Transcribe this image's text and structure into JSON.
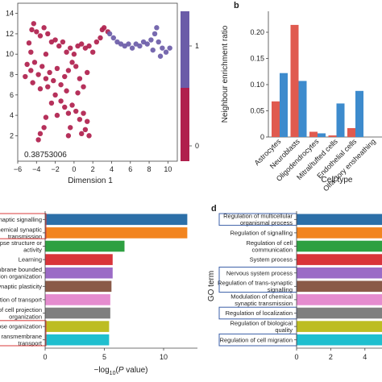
{
  "colors": {
    "red": "#e05a4f",
    "blue": "#3d8bcd",
    "crimson": "#b01f4d",
    "purple": "#6b5ca8",
    "box_red": "#d93b3b",
    "box_blue": "#3b5fa8"
  },
  "chart_data": [
    {
      "type": "scatter",
      "panel": "a",
      "xlabel": "Dimension 1",
      "ylabel": "",
      "xlim": [
        -6,
        11
      ],
      "ylim": [
        -0.5,
        15
      ],
      "xticks": [
        "−6",
        "−4",
        "−2",
        "0",
        "2",
        "4",
        "6",
        "8",
        "10"
      ],
      "xtick_values": [
        -6,
        -4,
        -2,
        0,
        2,
        4,
        6,
        8,
        10
      ],
      "yticks": [
        "2",
        "4",
        "6",
        "8",
        "10",
        "12",
        "14"
      ],
      "ytick_values": [
        2,
        4,
        6,
        8,
        10,
        12,
        14
      ],
      "annotation": "0.38753006",
      "colorbar": {
        "ticks": [
          "1",
          "0"
        ],
        "tick_values": [
          1,
          0
        ],
        "range": [
          0,
          1.5
        ]
      },
      "series": [
        {
          "values": [
            [
              -4.8,
              11.1
            ],
            [
              -4.5,
              12.4
            ],
            [
              -4.3,
              13.0
            ],
            [
              -4.0,
              12.2
            ],
            [
              -3.6,
              11.8
            ],
            [
              -3.2,
              12.6
            ],
            [
              -2.8,
              12.0
            ],
            [
              -2.4,
              11.2
            ],
            [
              -2.0,
              11.4
            ],
            [
              -1.6,
              10.8
            ],
            [
              -1.2,
              11.2
            ],
            [
              -0.8,
              10.2
            ],
            [
              -0.4,
              10.6
            ],
            [
              0.0,
              10.0
            ],
            [
              0.4,
              10.8
            ],
            [
              0.8,
              11.0
            ],
            [
              1.2,
              10.6
            ],
            [
              1.6,
              10.8
            ],
            [
              2.0,
              10.2
            ],
            [
              2.4,
              11.2
            ],
            [
              2.8,
              11.6
            ],
            [
              3.2,
              12.6
            ],
            [
              3.6,
              12.2
            ],
            [
              3.0,
              12.4
            ],
            [
              -5.0,
              9.0
            ],
            [
              -4.6,
              8.4
            ],
            [
              -4.2,
              9.2
            ],
            [
              -3.8,
              8.0
            ],
            [
              -3.4,
              8.8
            ],
            [
              -3.0,
              7.6
            ],
            [
              -2.6,
              8.2
            ],
            [
              -2.2,
              7.4
            ],
            [
              -1.8,
              8.6
            ],
            [
              -1.4,
              7.0
            ],
            [
              -1.0,
              7.8
            ],
            [
              -0.6,
              8.4
            ],
            [
              -0.2,
              9.2
            ],
            [
              0.2,
              8.8
            ],
            [
              0.6,
              7.6
            ],
            [
              1.0,
              6.8
            ],
            [
              -4.4,
              7.2
            ],
            [
              -5.2,
              7.8
            ],
            [
              -3.6,
              6.6
            ],
            [
              -2.8,
              6.8
            ],
            [
              -2.0,
              6.0
            ],
            [
              -1.4,
              5.4
            ],
            [
              -1.0,
              4.8
            ],
            [
              -0.6,
              4.2
            ],
            [
              -0.2,
              5.0
            ],
            [
              0.2,
              4.4
            ],
            [
              0.6,
              3.6
            ],
            [
              1.0,
              4.2
            ],
            [
              1.4,
              3.4
            ],
            [
              1.2,
              2.6
            ],
            [
              0.8,
              2.2
            ],
            [
              1.6,
              2.0
            ],
            [
              -3.0,
              3.8
            ],
            [
              -3.2,
              2.8
            ],
            [
              -3.6,
              2.2
            ],
            [
              -3.8,
              1.6
            ],
            [
              -0.4,
              2.8
            ],
            [
              -0.6,
              2.0
            ],
            [
              -1.8,
              4.0
            ],
            [
              -2.4,
              5.2
            ],
            [
              0.4,
              6.2
            ],
            [
              -0.8,
              6.4
            ],
            [
              1.4,
              8.2
            ],
            [
              -4.6,
              10.2
            ],
            [
              -3.0,
              10.0
            ]
          ]
        },
        {
          "values": [
            [
              3.8,
              12.0
            ],
            [
              4.2,
              11.6
            ],
            [
              4.6,
              11.2
            ],
            [
              5.0,
              11.0
            ],
            [
              5.4,
              10.8
            ],
            [
              5.8,
              11.0
            ],
            [
              6.2,
              10.6
            ],
            [
              6.6,
              11.0
            ],
            [
              7.0,
              10.8
            ],
            [
              7.4,
              11.2
            ],
            [
              7.8,
              11.0
            ],
            [
              8.2,
              11.4
            ],
            [
              8.6,
              12.0
            ],
            [
              8.8,
              12.6
            ],
            [
              9.0,
              11.2
            ],
            [
              9.4,
              10.6
            ],
            [
              9.8,
              10.2
            ],
            [
              10.2,
              10.6
            ],
            [
              9.2,
              9.8
            ],
            [
              8.4,
              10.4
            ]
          ]
        }
      ]
    },
    {
      "type": "bar",
      "panel": "b",
      "title": "",
      "xlabel": "Cell type",
      "ylabel": "Neighbour enrichment ratio",
      "ylim": [
        0,
        0.24
      ],
      "yticks": [
        "0",
        "0.05",
        "0.10",
        "0.15",
        "0.20"
      ],
      "ytick_values": [
        0,
        0.05,
        0.1,
        0.15,
        0.2
      ],
      "categories": [
        "Astrocytes",
        "Neuroblasts",
        "Oligodendrocytes",
        "Mitral/tufted cells",
        "Endothelial cells",
        "Olfactory ensheathing"
      ],
      "series": [
        {
          "values": [
            0.068,
            0.214,
            0.01,
            0.003,
            0.017,
            0.0
          ]
        },
        {
          "values": [
            0.122,
            0.107,
            0.007,
            0.064,
            0.088,
            0.0
          ]
        }
      ]
    },
    {
      "type": "bar",
      "panel": "c",
      "orientation": "horizontal",
      "xlabel": "−log10(P value)",
      "xlim": [
        0,
        13
      ],
      "xticks": [
        "0",
        "5",
        "10"
      ],
      "xtick_values": [
        0,
        5,
        10
      ],
      "categories": [
        "Regulation of trans-synaptic signalling",
        "Chemical synaptic transmission",
        "Synapse structure or activity",
        "Learning",
        "Membrane bounded organization",
        "Synaptic plasticity",
        "Regulation of transport",
        "Regulation of cell projection organization",
        "Synapse organization",
        "Transmembrane transport"
      ],
      "tick_labels": [
        "synaptic signalling",
        "Chemical synaptic\ntransmission",
        "apse structure or\nactivity",
        "Learning",
        "mbrane bounded\nion organization",
        "f synaptic plasticity",
        "egulation of transport",
        "n of cell projection\norganization",
        "apse organization",
        "ransmembrane\ntransport"
      ],
      "values": [
        12.0,
        12.0,
        6.7,
        5.7,
        5.7,
        5.6,
        5.5,
        5.5,
        5.4,
        5.4
      ],
      "bar_colors": [
        "#2c6fa8",
        "#f2841f",
        "#2ea041",
        "#d9343a",
        "#9b6bc6",
        "#8a5a48",
        "#e58ccf",
        "#7f7f7f",
        "#bdbd22",
        "#1fbfcf"
      ]
    },
    {
      "type": "bar",
      "panel": "d",
      "orientation": "horizontal",
      "ylabel": "GO term",
      "xlim": [
        0,
        5
      ],
      "xticks": [
        "0",
        "2",
        "4"
      ],
      "xtick_values": [
        0,
        2,
        4
      ],
      "categories": [
        "Regulation of multicellular organismal process",
        "Regulation of signalling",
        "Regulation of cell communication",
        "System process",
        "Nervous system process",
        "Regulation of trans-synaptic signalling",
        "Modulation of chemical synaptic transmission",
        "Regulation of localization",
        "Regulation of biological quality",
        "Regulation of cell migration"
      ],
      "tick_labels": [
        "Regulation of multicellular\norganismal process",
        "Regulation of signalling",
        "Regulation of cell\ncommunication",
        "System process",
        "Nervous system process",
        "Regulation of trans-synaptic\nsignalling",
        "Modulation of chemical\nsynaptic transmission",
        "Regulation of localization",
        "Regulation of biological\nquality",
        "Regulation of cell migration"
      ],
      "values": [
        5.0,
        5.0,
        5.0,
        5.0,
        5.0,
        5.0,
        5.0,
        5.0,
        5.0,
        5.0
      ],
      "bar_colors": [
        "#2c6fa8",
        "#f2841f",
        "#2ea041",
        "#d9343a",
        "#9b6bc6",
        "#8a5a48",
        "#e58ccf",
        "#7f7f7f",
        "#bdbd22",
        "#1fbfcf"
      ]
    }
  ],
  "panels": {
    "b": "b",
    "d": "d"
  }
}
